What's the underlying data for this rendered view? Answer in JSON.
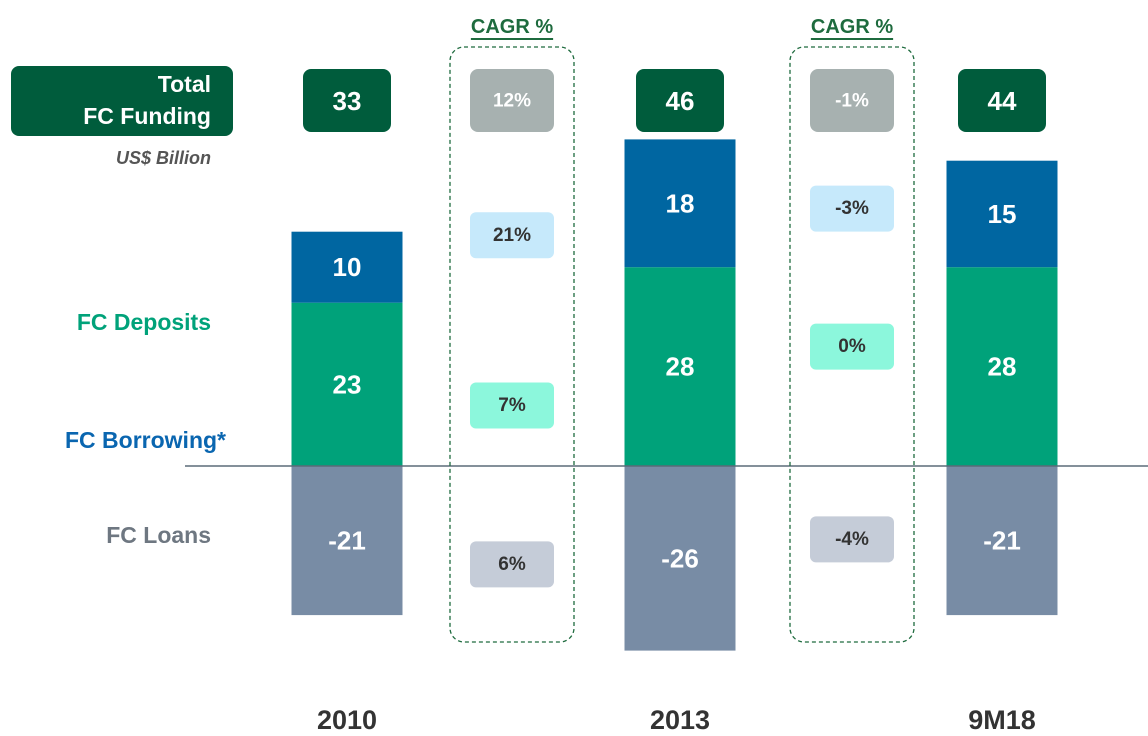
{
  "chart_data": {
    "type": "bar",
    "stacked": true,
    "categories": [
      "2010",
      "2013",
      "9M18"
    ],
    "series": [
      {
        "name": "FC Deposits",
        "color": "#00a27a",
        "label_color": "#00a27a",
        "values": [
          23,
          28,
          28
        ],
        "cagr": [
          7,
          0
        ],
        "cagr_labels": [
          "7%",
          "0%"
        ],
        "cagr_color": "#8cf7dc"
      },
      {
        "name": "FC Borrowing*",
        "color": "#0066a1",
        "label_color": "#0a66b0",
        "values": [
          10,
          18,
          15
        ],
        "cagr": [
          21,
          -3
        ],
        "cagr_labels": [
          "21%",
          "-3%"
        ],
        "cagr_color": "#c6e9fb"
      },
      {
        "name": "FC Loans",
        "color": "#788ca5",
        "label_color": "#6e7781",
        "values": [
          -21,
          -26,
          -21
        ],
        "cagr": [
          6,
          -4
        ],
        "cagr_labels": [
          "6%",
          "-4%"
        ],
        "cagr_color": "#c5ccd8"
      }
    ],
    "total_label": [
      "Total",
      "FC Funding"
    ],
    "unit": "US$ Billion",
    "totals": {
      "values": [
        33,
        46,
        44
      ],
      "color": "#005c3c"
    },
    "cagr_title": "CAGR %",
    "cagr_total": [
      12,
      -1
    ],
    "cagr_total_labels": [
      "12%",
      "-1%"
    ],
    "cagr_total_color": "#a7b1b0"
  }
}
